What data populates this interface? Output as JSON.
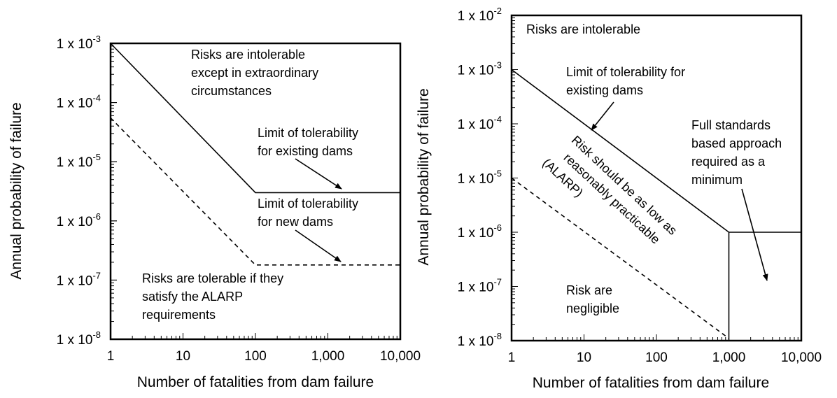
{
  "chart_data": [
    {
      "type": "line",
      "x_scale": "log",
      "y_scale": "log",
      "xlim": [
        1,
        10000
      ],
      "ylim": [
        1e-08,
        0.001
      ],
      "xlabel": "Number of fatalities from dam failure",
      "ylabel": "Annual probability of failure",
      "x_ticks": [
        1,
        10,
        100,
        1000,
        10000
      ],
      "x_tick_labels": [
        "1",
        "10",
        "100",
        "1,000",
        "10,000"
      ],
      "y_ticks": [
        1e-08,
        1e-07,
        1e-06,
        1e-05,
        0.0001,
        0.001
      ],
      "y_tick_labels": [
        {
          "base": "1 x 10",
          "exp": "-8"
        },
        {
          "base": "1 x 10",
          "exp": "-7"
        },
        {
          "base": "1 x 10",
          "exp": "-6"
        },
        {
          "base": "1 x 10",
          "exp": "-5"
        },
        {
          "base": "1 x 10",
          "exp": "-4"
        },
        {
          "base": "1 x 10",
          "exp": "-3"
        }
      ],
      "grid": false,
      "series": [
        {
          "style": "solid",
          "points": [
            [
              1,
              0.001
            ],
            [
              100,
              3e-06
            ],
            [
              10000,
              3e-06
            ]
          ]
        },
        {
          "style": "dashed",
          "points": [
            [
              1,
              5.5e-05
            ],
            [
              100,
              1.8e-07
            ],
            [
              10000,
              1.8e-07
            ]
          ]
        }
      ],
      "annotations": [
        {
          "lines": [
            "Risks are intolerable",
            "except in extraordinary",
            "circumstances"
          ]
        },
        {
          "lines": [
            "Limit of tolerability",
            "for existing dams"
          ]
        },
        {
          "lines": [
            "Limit of tolerability",
            "for new dams"
          ]
        },
        {
          "lines": [
            "Risks are tolerable if they",
            "satisfy the ALARP",
            "requirements"
          ]
        }
      ]
    },
    {
      "type": "line",
      "x_scale": "log",
      "y_scale": "log",
      "xlim": [
        1,
        10000
      ],
      "ylim": [
        1e-08,
        0.01
      ],
      "xlabel": "Number of fatalities from dam failure",
      "ylabel": "Annual probability of failure",
      "x_ticks": [
        1,
        10,
        100,
        1000,
        10000
      ],
      "x_tick_labels": [
        "1",
        "10",
        "100",
        "1,000",
        "10,000"
      ],
      "y_ticks": [
        1e-08,
        1e-07,
        1e-06,
        1e-05,
        0.0001,
        0.001,
        0.01
      ],
      "y_tick_labels": [
        {
          "base": "1 x 10",
          "exp": "-8"
        },
        {
          "base": "1 x 10",
          "exp": "-7"
        },
        {
          "base": "1 x 10",
          "exp": "-6"
        },
        {
          "base": "1 x 10",
          "exp": "-5"
        },
        {
          "base": "1 x 10",
          "exp": "-4"
        },
        {
          "base": "1 x 10",
          "exp": "-3"
        },
        {
          "base": "1 x 10",
          "exp": "-2"
        }
      ],
      "grid": false,
      "series": [
        {
          "style": "solid",
          "points": [
            [
              1,
              0.001
            ],
            [
              1000,
              1e-06
            ],
            [
              10000,
              1e-06
            ]
          ]
        },
        {
          "style": "solid",
          "points": [
            [
              1000,
              1e-06
            ],
            [
              1000,
              1e-08
            ]
          ]
        },
        {
          "style": "dashed",
          "points": [
            [
              1,
              1e-05
            ],
            [
              1000,
              1.1e-08
            ]
          ]
        }
      ],
      "annotations": [
        {
          "lines": [
            "Risks are intolerable"
          ]
        },
        {
          "lines": [
            "Limit of tolerability for",
            "existing dams"
          ]
        },
        {
          "lines": [
            "Full standards",
            "based approach",
            "required as a",
            "minimum"
          ]
        },
        {
          "lines": [
            "Risk should be as low as",
            "reasonably practicable",
            "(ALARP)"
          ]
        },
        {
          "lines": [
            "Risk are",
            "negligible"
          ]
        }
      ]
    }
  ]
}
